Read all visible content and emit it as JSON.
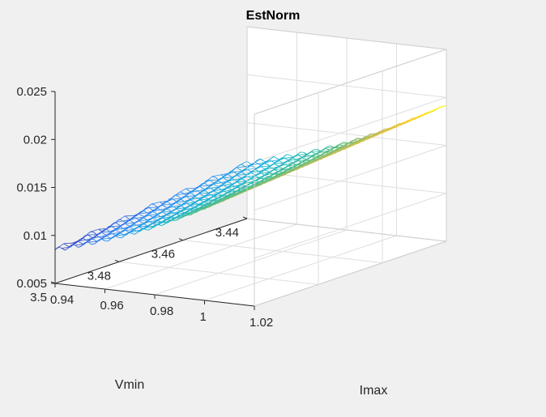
{
  "chart_data": {
    "type": "surface",
    "title": "EstNorm",
    "xlabel": "Imax",
    "ylabel": "Vmin",
    "zlabel": "",
    "xlim": [
      0.94,
      1.02
    ],
    "ylim": [
      3.44,
      3.5
    ],
    "zlim": [
      0.005,
      0.025
    ],
    "x_ticks": [
      "0.94",
      "0.96",
      "0.98",
      "1",
      "1.02"
    ],
    "y_ticks": [
      "3.44",
      "3.46",
      "3.48",
      "3.5"
    ],
    "z_ticks": [
      "0.005",
      "0.01",
      "0.015",
      "0.02",
      "0.025"
    ],
    "grid": true,
    "colormap": [
      "#3e26a8",
      "#2e87f7",
      "#12b4d5",
      "#4bbf8d",
      "#b6bd5d",
      "#fec838",
      "#f9fb15"
    ],
    "surface": {
      "x_range": [
        0.94,
        1.02
      ],
      "y_range": [
        3.44,
        3.5
      ],
      "z_corners": {
        "imax_0.94_vmin_3.5": 0.0085,
        "imax_0.94_vmin_3.44": 0.0108,
        "imax_1.02_vmin_3.5": 0.0175,
        "imax_1.02_vmin_3.44": 0.0192
      }
    }
  }
}
